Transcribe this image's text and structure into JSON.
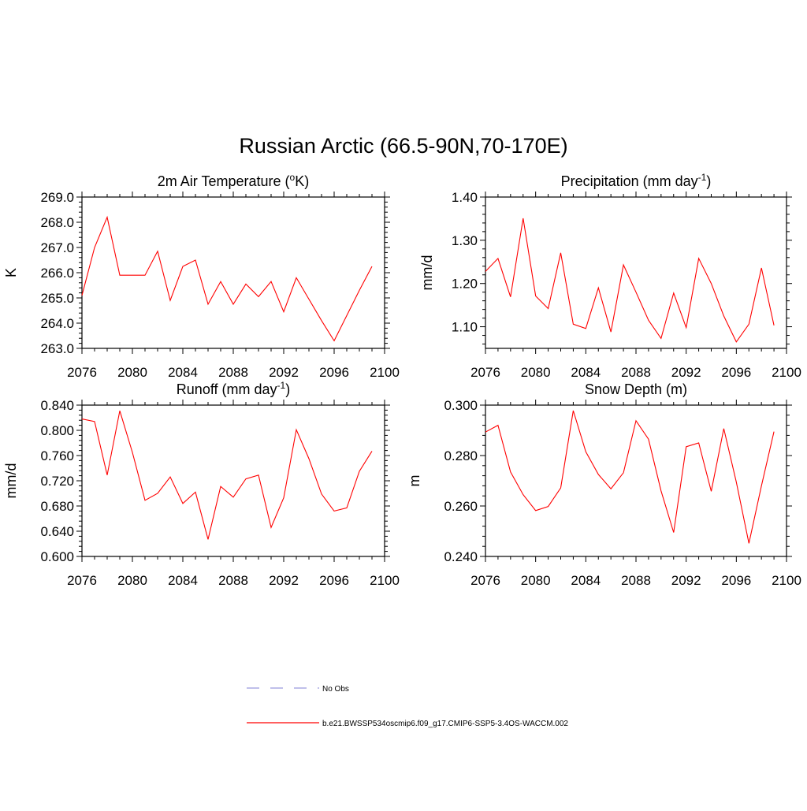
{
  "title": "Russian Arctic (66.5-90N,70-170E)",
  "colors": {
    "model": "#ff0000",
    "obs": "#9999dd",
    "axis": "#000000"
  },
  "legend": {
    "obs_label": "No Obs",
    "model_label": "b.e21.BWSSP534oscmip6.f09_g17.CMIP6-SSP5-3.4OS-WACCM.002"
  },
  "chart_data": [
    {
      "id": "temp",
      "type": "line",
      "title": "2m Air Temperature",
      "title_unit": "(oK)",
      "ylabel": "K",
      "xlim": [
        2076,
        2100
      ],
      "ylim": [
        263.0,
        269.0
      ],
      "xticks": [
        2076,
        2080,
        2084,
        2088,
        2092,
        2096,
        2100
      ],
      "yticks": [
        263.0,
        264.0,
        265.0,
        266.0,
        267.0,
        268.0,
        269.0
      ],
      "ytick_labels": [
        "263.0",
        "264.0",
        "265.0",
        "266.0",
        "267.0",
        "268.0",
        "269.0"
      ],
      "x": [
        2076,
        2077,
        2078,
        2079,
        2080,
        2081,
        2082,
        2083,
        2084,
        2085,
        2086,
        2087,
        2088,
        2089,
        2090,
        2091,
        2092,
        2093,
        2094,
        2095,
        2096,
        2097,
        2098,
        2099
      ],
      "series": [
        {
          "name": "b.e21.BWSSP534oscmip6.f09_g17.CMIP6-SSP5-3.4OS-WACCM.002",
          "values": [
            265.1,
            267.0,
            268.2,
            265.9,
            265.9,
            265.9,
            266.85,
            264.9,
            266.25,
            266.5,
            264.75,
            265.65,
            264.75,
            265.55,
            265.05,
            265.65,
            264.45,
            265.8,
            264.95,
            264.1,
            263.3,
            264.3,
            265.3,
            266.25
          ]
        }
      ]
    },
    {
      "id": "precip",
      "type": "line",
      "title": "Precipitation",
      "title_unit": "(mm day-1)",
      "ylabel": "mm/d",
      "xlim": [
        2076,
        2100
      ],
      "ylim": [
        1.05,
        1.4
      ],
      "xticks": [
        2076,
        2080,
        2084,
        2088,
        2092,
        2096,
        2100
      ],
      "yticks": [
        1.1,
        1.2,
        1.3,
        1.4
      ],
      "ytick_labels": [
        "1.10",
        "1.20",
        "1.30",
        "1.40"
      ],
      "x": [
        2076,
        2077,
        2078,
        2079,
        2080,
        2081,
        2082,
        2083,
        2084,
        2085,
        2086,
        2087,
        2088,
        2089,
        2090,
        2091,
        2092,
        2093,
        2094,
        2095,
        2096,
        2097,
        2098,
        2099
      ],
      "series": [
        {
          "name": "b.e21.BWSSP534oscmip6.f09_g17.CMIP6-SSP5-3.4OS-WACCM.002",
          "values": [
            1.228,
            1.258,
            1.169,
            1.351,
            1.171,
            1.142,
            1.271,
            1.106,
            1.096,
            1.19,
            1.088,
            1.243,
            1.18,
            1.115,
            1.073,
            1.178,
            1.098,
            1.258,
            1.2,
            1.125,
            1.065,
            1.106,
            1.236,
            1.103
          ]
        }
      ]
    },
    {
      "id": "runoff",
      "type": "line",
      "title": "Runoff",
      "title_unit": "(mm day-1)",
      "ylabel": "mm/d",
      "xlim": [
        2076,
        2100
      ],
      "ylim": [
        0.6,
        0.84
      ],
      "xticks": [
        2076,
        2080,
        2084,
        2088,
        2092,
        2096,
        2100
      ],
      "yticks": [
        0.6,
        0.64,
        0.68,
        0.72,
        0.76,
        0.8,
        0.84
      ],
      "ytick_labels": [
        "0.600",
        "0.640",
        "0.680",
        "0.720",
        "0.760",
        "0.800",
        "0.840"
      ],
      "x": [
        2076,
        2077,
        2078,
        2079,
        2080,
        2081,
        2082,
        2083,
        2084,
        2085,
        2086,
        2087,
        2088,
        2089,
        2090,
        2091,
        2092,
        2093,
        2094,
        2095,
        2096,
        2097,
        2098,
        2099
      ],
      "series": [
        {
          "name": "b.e21.BWSSP534oscmip6.f09_g17.CMIP6-SSP5-3.4OS-WACCM.002",
          "values": [
            0.818,
            0.814,
            0.729,
            0.831,
            0.765,
            0.689,
            0.7,
            0.726,
            0.684,
            0.702,
            0.627,
            0.711,
            0.694,
            0.723,
            0.729,
            0.646,
            0.693,
            0.801,
            0.755,
            0.699,
            0.672,
            0.677,
            0.735,
            0.767
          ]
        }
      ]
    },
    {
      "id": "snow",
      "type": "line",
      "title": "Snow Depth",
      "title_unit": "(m)",
      "ylabel": "m",
      "xlim": [
        2076,
        2100
      ],
      "ylim": [
        0.24,
        0.3
      ],
      "xticks": [
        2076,
        2080,
        2084,
        2088,
        2092,
        2096,
        2100
      ],
      "yticks": [
        0.24,
        0.26,
        0.28,
        0.3
      ],
      "ytick_labels": [
        "0.240",
        "0.260",
        "0.280",
        "0.300"
      ],
      "x": [
        2076,
        2077,
        2078,
        2079,
        2080,
        2081,
        2082,
        2083,
        2084,
        2085,
        2086,
        2087,
        2088,
        2089,
        2090,
        2091,
        2092,
        2093,
        2094,
        2095,
        2096,
        2097,
        2098,
        2099
      ],
      "series": [
        {
          "name": "b.e21.BWSSP534oscmip6.f09_g17.CMIP6-SSP5-3.4OS-WACCM.002",
          "values": [
            0.2893,
            0.292,
            0.2735,
            0.2645,
            0.2582,
            0.2598,
            0.2672,
            0.2978,
            0.2815,
            0.2725,
            0.2668,
            0.2732,
            0.2938,
            0.2865,
            0.266,
            0.2495,
            0.2835,
            0.285,
            0.2658,
            0.2907,
            0.2695,
            0.2452,
            0.268,
            0.2895
          ]
        }
      ]
    }
  ]
}
